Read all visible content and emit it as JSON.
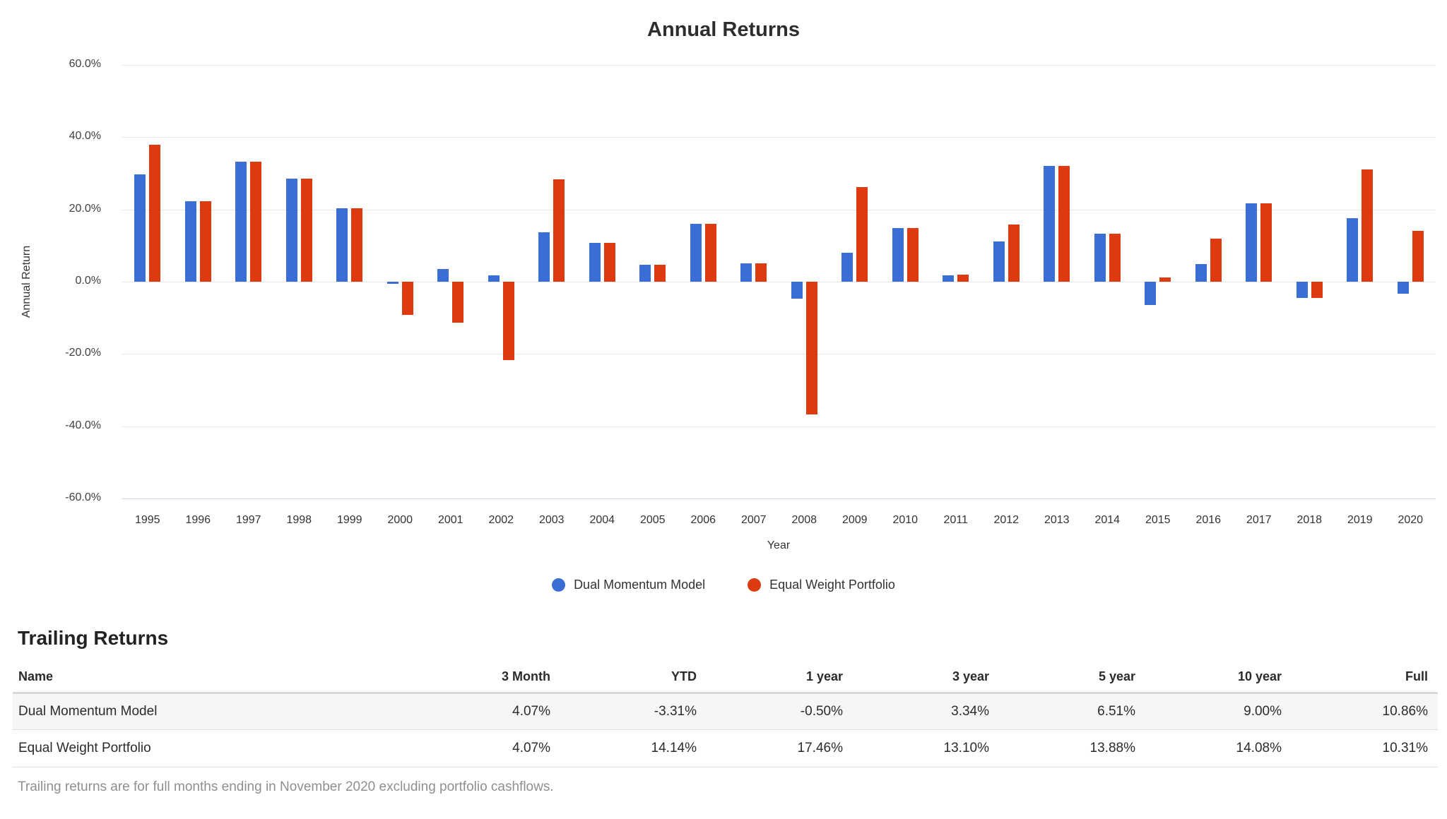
{
  "chart": {
    "title": "Annual Returns",
    "xlabel": "Year",
    "ylabel": "Annual Return"
  },
  "chart_data": {
    "type": "bar",
    "title": "Annual Returns",
    "xlabel": "Year",
    "ylabel": "Annual Return",
    "categories": [
      "1995",
      "1996",
      "1997",
      "1998",
      "1999",
      "2000",
      "2001",
      "2002",
      "2003",
      "2004",
      "2005",
      "2006",
      "2007",
      "2008",
      "2009",
      "2010",
      "2011",
      "2012",
      "2013",
      "2014",
      "2015",
      "2016",
      "2017",
      "2018",
      "2019",
      "2020"
    ],
    "series": [
      {
        "name": "Dual Momentum Model",
        "color": "#3b6ed4",
        "values": [
          29.7,
          22.3,
          33.3,
          28.6,
          20.4,
          -0.6,
          3.6,
          1.7,
          13.7,
          10.7,
          4.6,
          16.0,
          5.0,
          -4.7,
          8.0,
          14.9,
          1.8,
          11.1,
          32.1,
          13.3,
          -6.5,
          4.8,
          21.6,
          -4.4,
          17.6,
          -3.31
        ]
      },
      {
        "name": "Equal Weight Portfolio",
        "color": "#de3a10",
        "values": [
          38.0,
          22.3,
          33.2,
          28.6,
          20.3,
          -9.2,
          -11.4,
          -21.6,
          28.3,
          10.7,
          4.7,
          16.0,
          5.0,
          -36.8,
          26.1,
          14.9,
          2.0,
          15.8,
          32.1,
          13.3,
          1.2,
          11.9,
          21.6,
          -4.4,
          31.0,
          14.14
        ]
      }
    ],
    "ylim": [
      -60,
      60
    ],
    "yticks": [
      60,
      40,
      20,
      0,
      -20,
      -40,
      -60
    ],
    "ytick_labels": [
      "60.0%",
      "40.0%",
      "20.0%",
      "0.0%",
      "-20.0%",
      "-40.0%",
      "-60.0%"
    ],
    "grid": true,
    "legend_position": "bottom"
  },
  "legend": [
    {
      "label": "Dual Momentum Model",
      "color": "#3b6ed4"
    },
    {
      "label": "Equal Weight Portfolio",
      "color": "#de3a10"
    }
  ],
  "table": {
    "heading": "Trailing Returns",
    "columns": [
      "Name",
      "3 Month",
      "YTD",
      "1 year",
      "3 year",
      "5 year",
      "10 year",
      "Full"
    ],
    "rows": [
      {
        "name": "Dual Momentum Model",
        "values": [
          "4.07%",
          "-3.31%",
          "-0.50%",
          "3.34%",
          "6.51%",
          "9.00%",
          "10.86%"
        ]
      },
      {
        "name": "Equal Weight Portfolio",
        "values": [
          "4.07%",
          "14.14%",
          "17.46%",
          "13.10%",
          "13.88%",
          "14.08%",
          "10.31%"
        ]
      }
    ],
    "footnote": "Trailing returns are for full months ending in November 2020 excluding portfolio cashflows."
  }
}
